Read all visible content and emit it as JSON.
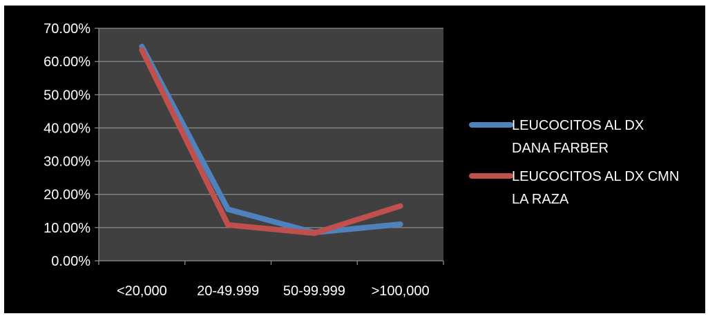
{
  "colors": {
    "page_background": "#ffffff",
    "chart_background": "#000000",
    "plot_background": "#404040",
    "gridline": "#8c8c8c",
    "axis": "#8c8c8c",
    "text": "#ffffff"
  },
  "chart_data": {
    "type": "line",
    "title": "",
    "xlabel": "",
    "ylabel": "",
    "categories": [
      "<20,000",
      "20-49.999",
      "50-99.999",
      ">100,000"
    ],
    "ylim": [
      0,
      0.7
    ],
    "y_ticks": [
      0,
      0.1,
      0.2,
      0.3,
      0.4,
      0.5,
      0.6,
      0.7
    ],
    "y_tick_labels": [
      "0.00%",
      "10.00%",
      "20.00%",
      "30.00%",
      "40.00%",
      "50.00%",
      "60.00%",
      "70.00%"
    ],
    "grid": true,
    "legend_position": "right",
    "series": [
      {
        "name": "LEUCOCITOS AL DX DANA FARBER",
        "legend_lines": [
          "LEUCOCITOS AL DX",
          "DANA FARBER"
        ],
        "color": "#4f81bd",
        "values": [
          0.645,
          0.155,
          0.085,
          0.11
        ]
      },
      {
        "name": "LEUCOCITOS AL DX CMN LA RAZA",
        "legend_lines": [
          "LEUCOCITOS AL DX CMN",
          "LA RAZA"
        ],
        "color": "#c0504d",
        "values": [
          0.635,
          0.108,
          0.083,
          0.165
        ]
      }
    ]
  }
}
